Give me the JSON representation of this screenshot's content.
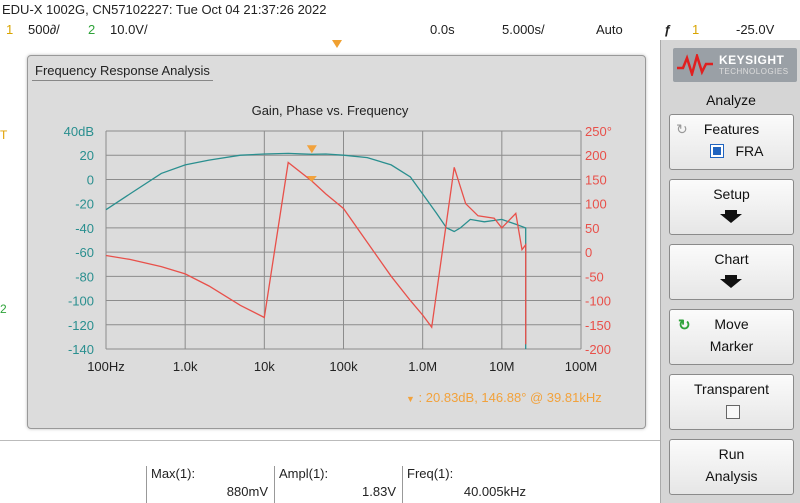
{
  "header": {
    "title": "EDU-X 1002G, CN57102227: Tue Oct 04 21:37:26 2022",
    "ch1_num": "1",
    "ch1_scale": "500∂/",
    "ch2_num": "2",
    "ch2_scale": "10.0V/",
    "time_delay": "0.0s",
    "time_scale": "5.000s/",
    "trigger_mode": "Auto",
    "trigger_src": "1",
    "trigger_level": "-25.0V"
  },
  "scope": {
    "ch1_marker": "T",
    "ch2_marker": "2"
  },
  "window": {
    "title": "Frequency Response Analysis"
  },
  "chart_data": {
    "type": "line",
    "title": "Gain, Phase vs. Frequency",
    "x_scale": "log",
    "xlim": [
      100,
      100000000
    ],
    "x_ticks": [
      "100Hz",
      "1.0k",
      "10k",
      "100k",
      "1.0M",
      "10M",
      "100M"
    ],
    "y_left": {
      "unit": "dB",
      "lim": [
        -140,
        40
      ],
      "ticks": [
        "40dB",
        "20",
        "0",
        "-20",
        "-40",
        "-60",
        "-80",
        "-100",
        "-120",
        "-140"
      ],
      "color": "#2a8f8f"
    },
    "y_right": {
      "unit": "°",
      "lim": [
        -200,
        250
      ],
      "ticks": [
        "250°",
        "200",
        "150",
        "100",
        "50",
        "0",
        "-50",
        "-100",
        "-150",
        "-200"
      ],
      "color": "#e8504a"
    },
    "grid": true,
    "series": [
      {
        "axis": "left",
        "color": "#2a8f8f",
        "points": [
          [
            100,
            -25
          ],
          [
            200,
            -12
          ],
          [
            500,
            5
          ],
          [
            1000,
            12
          ],
          [
            2000,
            16
          ],
          [
            5000,
            20
          ],
          [
            10000,
            21
          ],
          [
            20000,
            21.5
          ],
          [
            39810,
            20.8
          ],
          [
            60000,
            21
          ],
          [
            100000,
            20
          ],
          [
            200000,
            18
          ],
          [
            400000,
            12
          ],
          [
            700000,
            2
          ],
          [
            1000000,
            -12
          ],
          [
            1500000,
            -28
          ],
          [
            2000000,
            -40
          ],
          [
            2500000,
            -43
          ],
          [
            3000000,
            -40
          ],
          [
            4000000,
            -33
          ],
          [
            6000000,
            -35
          ],
          [
            10000000,
            -33
          ],
          [
            15000000,
            -37
          ],
          [
            20000000,
            -40
          ],
          [
            20010000,
            -140
          ]
        ]
      },
      {
        "axis": "right",
        "color": "#e8504a",
        "points": [
          [
            100,
            -7
          ],
          [
            200,
            -15
          ],
          [
            500,
            -30
          ],
          [
            1000,
            -45
          ],
          [
            2000,
            -70
          ],
          [
            5000,
            -110
          ],
          [
            10000,
            -135
          ],
          [
            20000,
            185
          ],
          [
            39810,
            146.88
          ],
          [
            60000,
            120
          ],
          [
            100000,
            90
          ],
          [
            200000,
            20
          ],
          [
            400000,
            -50
          ],
          [
            700000,
            -100
          ],
          [
            1000000,
            -130
          ],
          [
            1300000,
            -155
          ],
          [
            2500000,
            175
          ],
          [
            3500000,
            100
          ],
          [
            5000000,
            75
          ],
          [
            8000000,
            70
          ],
          [
            10000000,
            50
          ],
          [
            15000000,
            80
          ],
          [
            18000000,
            5
          ],
          [
            20000000,
            15
          ],
          [
            20010000,
            -190
          ]
        ]
      }
    ],
    "cursor": {
      "x": 39810,
      "gain_db": 20.83,
      "phase_deg": 146.88
    }
  },
  "cursor_readout": {
    "arrow": "▼",
    "text": ": 20.83dB, 146.88° @ 39.81kHz"
  },
  "softkeys": {
    "menu_title": "Analyze",
    "features_label": "Features",
    "features_sub": "FRA",
    "setup_label": "Setup",
    "chart_label": "Chart",
    "move_label1": "Move",
    "move_label2": "Marker",
    "transparent_label": "Transparent",
    "run_label1": "Run",
    "run_label2": "Analysis"
  },
  "brand": {
    "name": "KEYSIGHT",
    "sub": "TECHNOLOGIES"
  },
  "measurements": [
    {
      "label": "Max(1):",
      "value": "880mV"
    },
    {
      "label": "Ampl(1):",
      "value": "1.83V"
    },
    {
      "label": "Freq(1):",
      "value": "40.005kHz"
    }
  ]
}
